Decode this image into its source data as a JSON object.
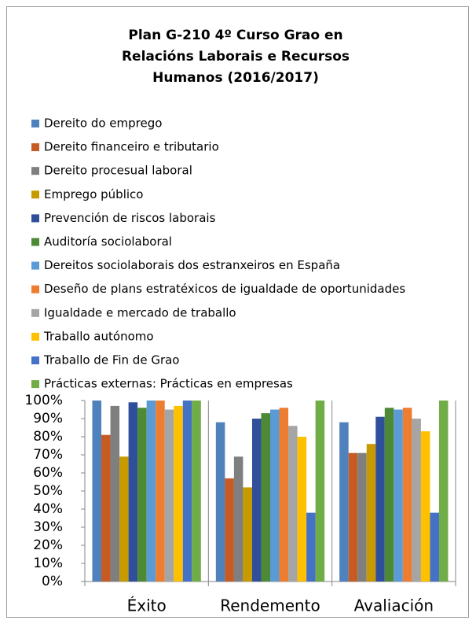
{
  "chart_data": {
    "type": "bar",
    "title": [
      "Plan G-210 4º Curso Grao en",
      "Relacións Laborais e Recursos",
      "Humanos (2016/2017)"
    ],
    "categories": [
      "Éxito",
      "Rendemento",
      "Avaliación"
    ],
    "series": [
      {
        "name": "Dereito do emprego",
        "color": "#4f81bd",
        "values": [
          100,
          88,
          88
        ]
      },
      {
        "name": "Dereito financeiro e tributario",
        "color": "#c65b24",
        "values": [
          81,
          57,
          71
        ]
      },
      {
        "name": "Dereito procesual laboral",
        "color": "#7f7f7f",
        "values": [
          97,
          69,
          71
        ]
      },
      {
        "name": "Emprego público",
        "color": "#c79a00",
        "values": [
          69,
          52,
          76
        ]
      },
      {
        "name": "Prevención de riscos laborais",
        "color": "#2f4f9a",
        "values": [
          99,
          90,
          91
        ]
      },
      {
        "name": "Auditoría sociolaboral",
        "color": "#4e8a35",
        "values": [
          96,
          93,
          96
        ]
      },
      {
        "name": "Dereitos sociolaborais dos estranxeiros en España",
        "color": "#5b9bd5",
        "values": [
          100,
          95,
          95
        ]
      },
      {
        "name": "Deseño de plans estratéxicos de igualdade de oportunidades",
        "color": "#ed7d31",
        "values": [
          100,
          96,
          96
        ]
      },
      {
        "name": "Igualdade e mercado de traballo",
        "color": "#a5a5a5",
        "values": [
          95,
          86,
          90
        ]
      },
      {
        "name": "Traballo autónomo",
        "color": "#ffc000",
        "values": [
          97,
          80,
          83
        ]
      },
      {
        "name": "Traballo de Fin de Grao",
        "color": "#4472c4",
        "values": [
          100,
          38,
          38
        ]
      },
      {
        "name": "Prácticas externas: Prácticas en empresas",
        "color": "#70ad47",
        "values": [
          100,
          100,
          100
        ]
      }
    ],
    "ylim": [
      0,
      100
    ],
    "yticks": [
      {
        "value": 0,
        "label": "0%"
      },
      {
        "value": 10,
        "label": "10%"
      },
      {
        "value": 20,
        "label": "20%"
      },
      {
        "value": 30,
        "label": "30%"
      },
      {
        "value": 40,
        "label": "40%"
      },
      {
        "value": 50,
        "label": "50%"
      },
      {
        "value": 60,
        "label": "60%"
      },
      {
        "value": 70,
        "label": "70%"
      },
      {
        "value": 80,
        "label": "80%"
      },
      {
        "value": 90,
        "label": "90%"
      },
      {
        "value": 100,
        "label": "100%"
      }
    ],
    "legend": "top",
    "grid": false
  }
}
